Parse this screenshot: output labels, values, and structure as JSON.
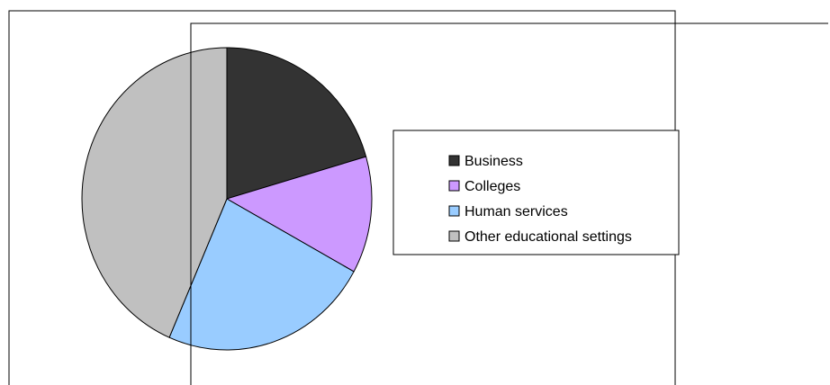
{
  "chart_data": {
    "type": "pie",
    "categories": [
      "Business",
      "Colleges",
      "Human services",
      "Other educational settings"
    ],
    "values": [
      20.5,
      12.5,
      23.5,
      43.5
    ],
    "colors": [
      "#333333",
      "#cc99ff",
      "#99ccff",
      "#c0c0c0"
    ],
    "legend_position": "right"
  }
}
